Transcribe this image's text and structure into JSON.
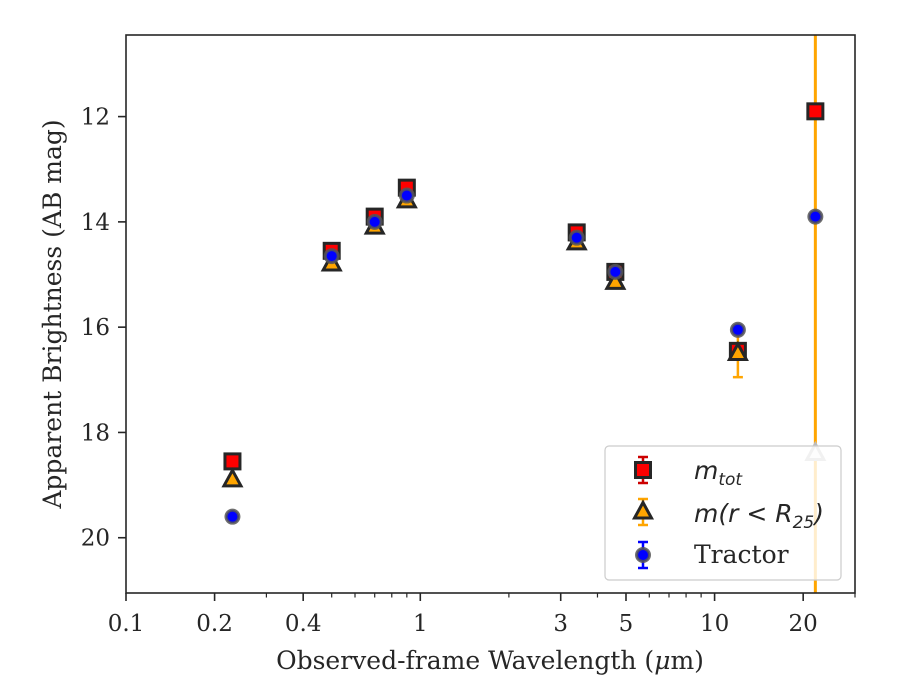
{
  "chart_data": {
    "type": "scatter",
    "xlabel_pre": "Observed-frame Wavelength (",
    "xlabel_mu": "μ",
    "xlabel_post": "m)",
    "ylabel": "Apparent Brightness (AB mag)",
    "xscale": "log",
    "xlim": [
      0.1,
      30
    ],
    "ylim": [
      21.05,
      10.45
    ],
    "y_inverted": true,
    "grid": false,
    "legend_position": "lower right",
    "xticks": [
      {
        "value": 0.1,
        "label": "0.1"
      },
      {
        "value": 0.2,
        "label": "0.2"
      },
      {
        "value": 0.4,
        "label": "0.4"
      },
      {
        "value": 1,
        "label": "1"
      },
      {
        "value": 3,
        "label": "3"
      },
      {
        "value": 5,
        "label": "5"
      },
      {
        "value": 10,
        "label": "10"
      },
      {
        "value": 20,
        "label": "20"
      }
    ],
    "yticks": [
      {
        "value": 12,
        "label": "12"
      },
      {
        "value": 14,
        "label": "14"
      },
      {
        "value": 16,
        "label": "16"
      },
      {
        "value": 18,
        "label": "18"
      },
      {
        "value": 20,
        "label": "20"
      }
    ],
    "series": [
      {
        "name": "m_tot",
        "legend_main": "m",
        "legend_sub": "tot",
        "marker": "square",
        "color": "#ff0000",
        "edge": "#262626",
        "errcolor": "#cc0000",
        "points": [
          {
            "x": 0.23,
            "y": 18.55,
            "err": 0.05
          },
          {
            "x": 0.5,
            "y": 14.55,
            "err": 0.05
          },
          {
            "x": 0.7,
            "y": 13.9,
            "err": 0.05
          },
          {
            "x": 0.9,
            "y": 13.35,
            "err": 0.05
          },
          {
            "x": 3.4,
            "y": 14.2,
            "err": 0.05
          },
          {
            "x": 4.6,
            "y": 14.95,
            "err": 0.05
          },
          {
            "x": 12,
            "y": 16.45,
            "err": 0.05
          },
          {
            "x": 22,
            "y": 11.9,
            "err": 0.05
          }
        ]
      },
      {
        "name": "m(r<R25)",
        "legend_main": "m(r < R",
        "legend_sub": "25",
        "legend_tail": ")",
        "marker": "triangle",
        "color": "#ffa500",
        "edge": "#262626",
        "errcolor": "#ffa500",
        "points": [
          {
            "x": 0.23,
            "y": 18.9,
            "err": 0.05
          },
          {
            "x": 0.5,
            "y": 14.8,
            "err": 0.05
          },
          {
            "x": 0.7,
            "y": 14.1,
            "err": 0.05
          },
          {
            "x": 0.9,
            "y": 13.6,
            "err": 0.05
          },
          {
            "x": 3.4,
            "y": 14.4,
            "err": 0.05
          },
          {
            "x": 4.6,
            "y": 15.15,
            "err": 0.05
          },
          {
            "x": 12,
            "y": 16.5,
            "err": 0.45
          },
          {
            "x": 22,
            "y": 18.4,
            "err": 100,
            "faded": true
          }
        ]
      },
      {
        "name": "Tractor",
        "marker": "circle",
        "color": "#0000ff",
        "edge": "#555555",
        "errcolor": "#0000ff",
        "points": [
          {
            "x": 0.23,
            "y": 19.6,
            "err": 0.05
          },
          {
            "x": 0.5,
            "y": 14.65,
            "err": 0.05
          },
          {
            "x": 0.7,
            "y": 14.0,
            "err": 0.05
          },
          {
            "x": 0.9,
            "y": 13.5,
            "err": 0.05
          },
          {
            "x": 3.4,
            "y": 14.3,
            "err": 0.05
          },
          {
            "x": 4.6,
            "y": 14.95,
            "err": 0.05
          },
          {
            "x": 12,
            "y": 16.05,
            "err": 0.05
          },
          {
            "x": 22,
            "y": 13.9,
            "err": 0.05
          }
        ]
      }
    ]
  }
}
